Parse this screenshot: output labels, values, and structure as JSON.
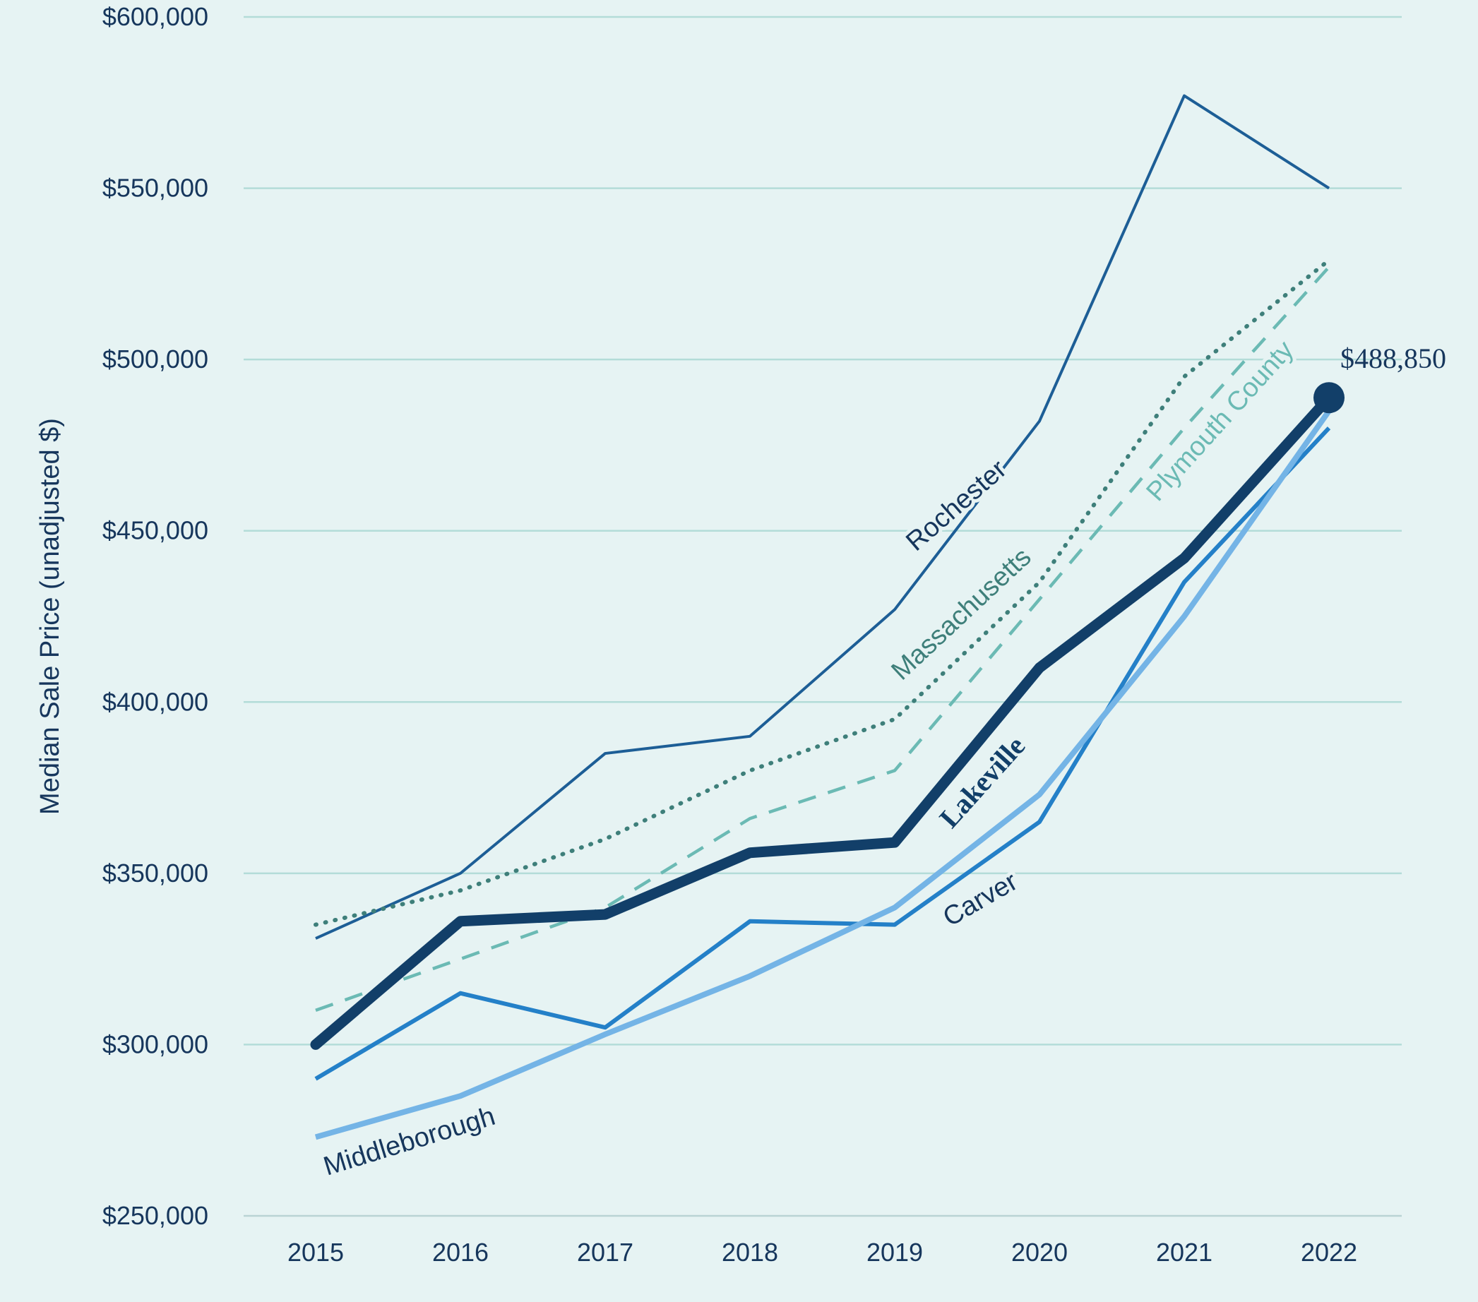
{
  "chart_data": {
    "type": "line",
    "title": "",
    "xlabel": "",
    "ylabel": "Median Sale Price (unadjusted $)",
    "x": [
      "2015",
      "2016",
      "2017",
      "2018",
      "2019",
      "2020",
      "2021",
      "2022"
    ],
    "ylim": [
      250000,
      600000
    ],
    "yticks": [
      250000,
      300000,
      350000,
      400000,
      450000,
      500000,
      550000,
      600000
    ],
    "ytick_labels": [
      "$250,000",
      "$300,000",
      "$350,000",
      "$400,000",
      "$450,000",
      "$500,000",
      "$550,000",
      "$600,000"
    ],
    "grid": true,
    "series": [
      {
        "name": "Rochester",
        "label": "Rochester",
        "style": "solid-thin",
        "color": "#1d5e96",
        "values": [
          331000,
          350000,
          385000,
          390000,
          427000,
          482000,
          577000,
          550000
        ]
      },
      {
        "name": "Massachusetts",
        "label": "Massachusetts",
        "style": "dotted",
        "color": "#3e7f7a",
        "values": [
          335000,
          345000,
          360000,
          380000,
          395000,
          435000,
          495000,
          529000
        ]
      },
      {
        "name": "Plymouth County",
        "label": "Plymouth County",
        "style": "dashed",
        "color": "#6bbab4",
        "values": [
          310000,
          325000,
          340000,
          366000,
          380000,
          430000,
          480000,
          527000
        ]
      },
      {
        "name": "Carver",
        "label": "Carver",
        "style": "solid-medium",
        "color": "#2480c8",
        "values": [
          290000,
          315000,
          305000,
          336000,
          335000,
          365000,
          435000,
          480000
        ]
      },
      {
        "name": "Middleborough",
        "label": "Middleborough",
        "style": "solid-light",
        "color": "#74b4e6",
        "values": [
          273000,
          285000,
          303000,
          320000,
          340000,
          373000,
          425000,
          485000
        ]
      },
      {
        "name": "Lakeville",
        "label": "Lakeville",
        "style": "solid-thick",
        "color": "#123f69",
        "values": [
          300000,
          336000,
          338000,
          356000,
          359000,
          410000,
          442000,
          488850
        ]
      }
    ],
    "annotations": [
      {
        "series": "Lakeville",
        "x": "2022",
        "value": 488850,
        "text": "$488,850"
      }
    ]
  }
}
